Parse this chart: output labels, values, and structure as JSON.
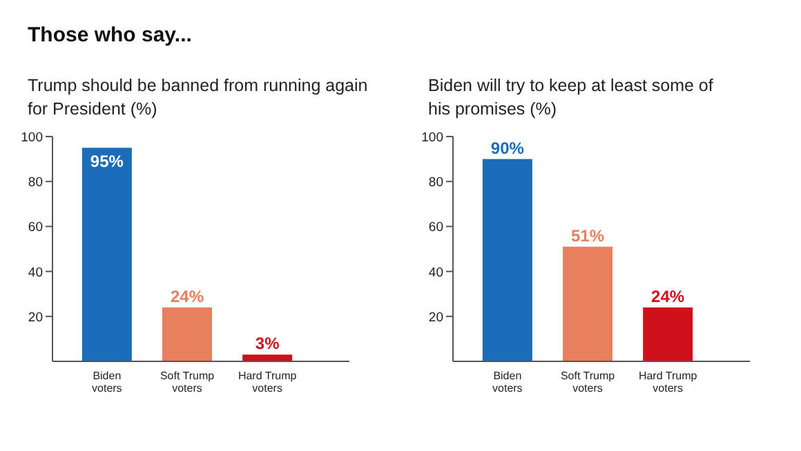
{
  "chart_data": [
    {
      "type": "other",
      "title": "Those who say..."
    },
    {
      "type": "bar",
      "title": "Trump should be banned from running again for President (%)",
      "categories": [
        "Biden voters",
        "Soft Trump voters",
        "Hard Trump voters"
      ],
      "values": [
        95,
        24,
        3
      ],
      "colors": [
        "#1a6db8",
        "#e87f5d",
        "#d0111b"
      ],
      "value_labels": [
        "95%",
        "24%",
        "3%"
      ],
      "ylim": [
        0,
        100
      ],
      "yticks": [
        20,
        40,
        60,
        80,
        100
      ]
    },
    {
      "type": "bar",
      "title": "Biden will try to keep at least some of his promises (%)",
      "categories": [
        "Biden voters",
        "Soft Trump voters",
        "Hard Trump voters"
      ],
      "values": [
        90,
        51,
        24
      ],
      "colors": [
        "#1a6db8",
        "#e87f5d",
        "#d0111b"
      ],
      "value_labels": [
        "90%",
        "51%",
        "24%"
      ],
      "ylim": [
        0,
        100
      ],
      "yticks": [
        20,
        40,
        60,
        80,
        100
      ]
    }
  ]
}
